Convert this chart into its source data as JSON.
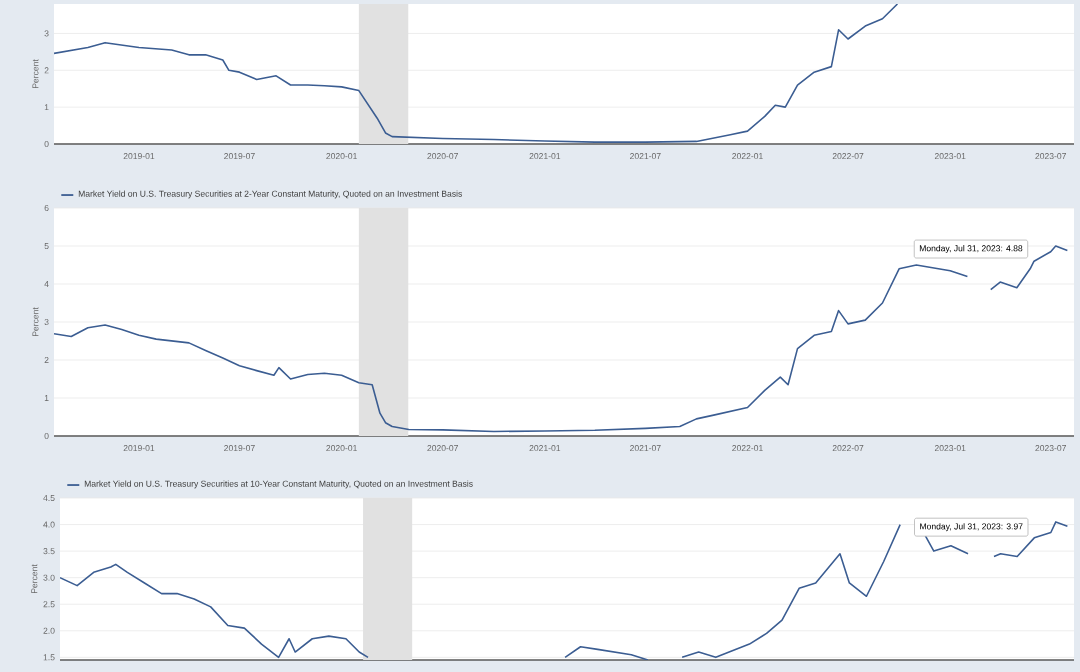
{
  "chart_data": [
    {
      "type": "line",
      "ylabel": "Percent",
      "xlim": [
        "2018-08-01",
        "2023-08-12"
      ],
      "ylim": [
        0,
        3.8
      ],
      "xticks": [
        "2019-01",
        "2019-07",
        "2020-01",
        "2020-07",
        "2021-01",
        "2021-07",
        "2022-01",
        "2022-07",
        "2023-01",
        "2023-07"
      ],
      "yticks": [
        0,
        1,
        2,
        3
      ],
      "grid": "y",
      "marker": "none",
      "line_style": "solid",
      "bands": [
        {
          "axis": "x",
          "from": "2020-02-01",
          "to": "2020-04-30",
          "color": "#e1e1e1"
        }
      ],
      "x": [
        "2018-08-01",
        "2018-10-01",
        "2018-11-01",
        "2019-01-01",
        "2019-03-01",
        "2019-04-01",
        "2019-05-01",
        "2019-06-01",
        "2019-06-12",
        "2019-07-01",
        "2019-08-01",
        "2019-09-05",
        "2019-10-01",
        "2019-11-01",
        "2019-12-01",
        "2020-01-01",
        "2020-02-01",
        "2020-03-05",
        "2020-03-20",
        "2020-04-01",
        "2020-07-01",
        "2020-10-01",
        "2021-01-01",
        "2021-04-01",
        "2021-07-01",
        "2021-10-01",
        "2021-12-01",
        "2022-01-01",
        "2022-02-01",
        "2022-02-20",
        "2022-03-10",
        "2022-04-01",
        "2022-05-01",
        "2022-06-01",
        "2022-06-14",
        "2022-07-01",
        "2022-08-01",
        "2022-09-01",
        "2022-09-28"
      ],
      "series": [
        {
          "color": "#3b5d92",
          "values": [
            2.46,
            2.62,
            2.75,
            2.62,
            2.55,
            2.42,
            2.42,
            2.28,
            2.0,
            1.95,
            1.75,
            1.85,
            1.6,
            1.6,
            1.58,
            1.55,
            1.45,
            0.7,
            0.3,
            0.2,
            0.15,
            0.12,
            0.08,
            0.05,
            0.05,
            0.07,
            0.25,
            0.35,
            0.75,
            1.05,
            1.0,
            1.6,
            1.95,
            2.1,
            3.1,
            2.85,
            3.2,
            3.4,
            3.8
          ]
        }
      ]
    },
    {
      "type": "line",
      "ylabel": "Percent",
      "xlim": [
        "2018-08-01",
        "2023-08-12"
      ],
      "ylim": [
        0,
        6
      ],
      "xticks": [
        "2019-01",
        "2019-07",
        "2020-01",
        "2020-07",
        "2021-01",
        "2021-07",
        "2022-01",
        "2022-07",
        "2023-01",
        "2023-07"
      ],
      "yticks": [
        0,
        1,
        2,
        3,
        4,
        5,
        6
      ],
      "grid": "y",
      "legend": "top left",
      "marker": "none",
      "line_style": "solid",
      "bands": [
        {
          "axis": "x",
          "from": "2020-02-01",
          "to": "2020-04-30",
          "color": "#e1e1e1"
        }
      ],
      "annotations": [
        "Monday, Jul 31, 2023: 4.88"
      ],
      "x": [
        "2018-08-01",
        "2018-09-01",
        "2018-10-01",
        "2018-11-01",
        "2018-12-01",
        "2019-01-01",
        "2019-02-01",
        "2019-04-01",
        "2019-05-01",
        "2019-06-01",
        "2019-07-01",
        "2019-08-01",
        "2019-09-01",
        "2019-09-10",
        "2019-10-01",
        "2019-11-01",
        "2019-12-01",
        "2020-01-01",
        "2020-02-01",
        "2020-02-25",
        "2020-03-10",
        "2020-03-20",
        "2020-04-01",
        "2020-05-01",
        "2020-07-01",
        "2020-10-01",
        "2021-01-01",
        "2021-04-01",
        "2021-07-01",
        "2021-09-01",
        "2021-10-01",
        "2021-11-01",
        "2022-01-01",
        "2022-02-01",
        "2022-03-01",
        "2022-03-15",
        "2022-04-01",
        "2022-05-01",
        "2022-06-01",
        "2022-06-14",
        "2022-07-01",
        "2022-08-01",
        "2022-09-01",
        "2022-10-01",
        "2022-11-01",
        "2023-01-01",
        "2023-02-01",
        "2023-03-05",
        "2023-03-15",
        "2023-04-01",
        "2023-05-01",
        "2023-05-25",
        "2023-06-01",
        "2023-07-01",
        "2023-07-10",
        "2023-07-31"
      ],
      "series": [
        {
          "name": "Market Yield on U.S. Treasury Securities at 2-Year Constant Maturity, Quoted on an Investment Basis",
          "color": "#3b5d92",
          "values": [
            2.69,
            2.62,
            2.85,
            2.92,
            2.8,
            2.65,
            2.55,
            2.45,
            2.25,
            2.05,
            1.85,
            1.72,
            1.6,
            1.8,
            1.5,
            1.62,
            1.65,
            1.6,
            1.4,
            1.35,
            0.6,
            0.35,
            0.25,
            0.17,
            0.16,
            0.12,
            0.13,
            0.15,
            0.2,
            0.25,
            0.45,
            0.55,
            0.75,
            1.2,
            1.55,
            1.35,
            2.3,
            2.65,
            2.75,
            3.3,
            2.95,
            3.05,
            3.5,
            4.4,
            4.5,
            4.35,
            4.2,
            null,
            3.85,
            4.05,
            3.9,
            4.4,
            4.6,
            4.85,
            5.0,
            4.88
          ]
        }
      ]
    },
    {
      "type": "line",
      "ylabel": "Percent",
      "xlim": [
        "2018-08-01",
        "2023-08-12"
      ],
      "ylim": [
        1.45,
        4.5
      ],
      "yticks": [
        {
          "value": 1.5,
          "label": "1.5"
        },
        {
          "value": 2,
          "label": "2.0"
        },
        {
          "value": 2.5,
          "label": "2.5"
        },
        {
          "value": 3,
          "label": "3.0"
        },
        {
          "value": 3.5,
          "label": "3.5"
        },
        {
          "value": 4,
          "label": "4.0"
        },
        {
          "value": 4.5,
          "label": "4.5"
        }
      ],
      "grid": "y",
      "legend": "top left",
      "tick_labels": "y",
      "marker": "none",
      "line_style": "solid",
      "bands": [
        {
          "axis": "x",
          "from": "2020-02-01",
          "to": "2020-04-30",
          "color": "#e1e1e1"
        }
      ],
      "annotations": [
        "Monday, Jul 31, 2023: 3.97"
      ],
      "x": [
        "2018-08-01",
        "2018-09-01",
        "2018-10-01",
        "2018-11-01",
        "2018-11-10",
        "2018-12-01",
        "2019-01-01",
        "2019-02-01",
        "2019-03-01",
        "2019-04-01",
        "2019-05-01",
        "2019-06-01",
        "2019-07-01",
        "2019-08-01",
        "2019-09-01",
        "2019-09-20",
        "2019-10-01",
        "2019-11-01",
        "2019-12-01",
        "2020-01-01",
        "2020-01-25",
        "2020-02-10",
        "2020-06-01",
        "2021-02-01",
        "2021-03-01",
        "2021-04-01",
        "2021-06-01",
        "2021-07-01",
        "2021-08-01",
        "2021-09-01",
        "2021-10-01",
        "2021-11-01",
        "2022-01-01",
        "2022-02-01",
        "2022-03-01",
        "2022-04-01",
        "2022-05-01",
        "2022-06-14",
        "2022-07-01",
        "2022-08-01",
        "2022-09-01",
        "2022-10-01",
        "2022-10-25",
        "2022-11-15",
        "2022-12-01",
        "2023-01-01",
        "2023-02-01",
        "2023-03-01",
        "2023-03-20",
        "2023-04-01",
        "2023-05-01",
        "2023-06-01",
        "2023-07-01",
        "2023-07-10",
        "2023-07-31"
      ],
      "series": [
        {
          "name": "Market Yield on U.S. Treasury Securities at 10-Year Constant Maturity, Quoted on an Investment Basis",
          "color": "#3b5d92",
          "values": [
            3.0,
            2.85,
            3.1,
            3.2,
            3.25,
            3.1,
            2.9,
            2.7,
            2.7,
            2.6,
            2.45,
            2.1,
            2.05,
            1.75,
            1.5,
            1.85,
            1.6,
            1.85,
            1.9,
            1.85,
            1.6,
            1.5,
            null,
            1.5,
            1.7,
            1.65,
            1.55,
            1.45,
            null,
            1.5,
            1.6,
            1.5,
            1.75,
            1.95,
            2.2,
            2.8,
            2.9,
            3.45,
            2.9,
            2.65,
            3.3,
            4.0,
            null,
            3.8,
            3.5,
            3.6,
            3.45,
            null,
            3.4,
            3.45,
            3.4,
            3.75,
            3.85,
            4.05,
            3.97
          ]
        }
      ]
    }
  ]
}
